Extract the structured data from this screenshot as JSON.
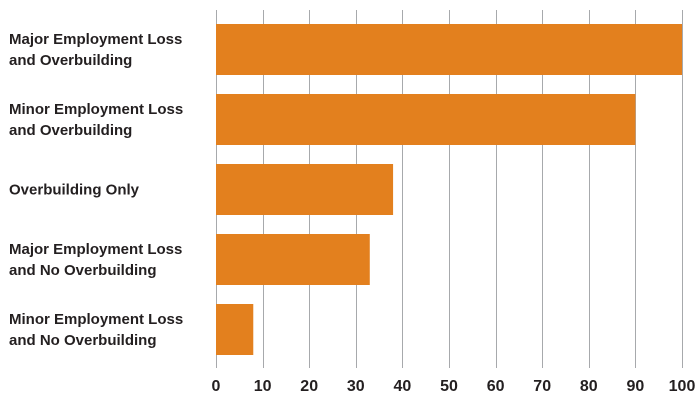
{
  "chart_data": {
    "type": "bar",
    "orientation": "horizontal",
    "categories": [
      [
        "Major Employment Loss",
        "and Overbuilding"
      ],
      [
        "Minor Employment Loss",
        "and Overbuilding"
      ],
      [
        "Overbuilding Only"
      ],
      [
        "Major Employment Loss",
        "and No Overbuilding"
      ],
      [
        "Minor Employment Loss",
        "and No Overbuilding"
      ]
    ],
    "values": [
      100,
      90,
      38,
      33,
      8
    ],
    "xlim": [
      0,
      100
    ],
    "xticks": [
      0,
      10,
      20,
      30,
      40,
      50,
      60,
      70,
      80,
      90,
      100
    ],
    "grid": "vertical",
    "title": "",
    "xlabel": "",
    "ylabel": "",
    "bar_color": "#e3801e",
    "grid_color": "#a7a9ac",
    "text_color": "#231f20"
  }
}
